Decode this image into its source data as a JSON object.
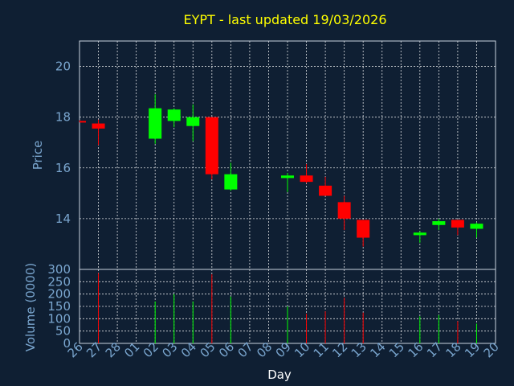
{
  "chart_data": [
    {
      "type": "candlestick",
      "title": "EYPT - last updated 19/03/2026",
      "ylabel": "Price",
      "ylim": [
        12.0,
        21.0
      ],
      "yticks": [
        14,
        16,
        18,
        20
      ],
      "grid": true,
      "x_dates": [
        "26",
        "27",
        "28",
        "01",
        "02",
        "03",
        "04",
        "05",
        "06",
        "07",
        "08",
        "09",
        "10",
        "11",
        "12",
        "13",
        "14",
        "15",
        "16",
        "17",
        "18",
        "19",
        "20"
      ],
      "candles": [
        {
          "date": "26",
          "open": 17.85,
          "high": 17.87,
          "low": 17.83,
          "close": 17.83
        },
        {
          "date": "27",
          "open": 17.75,
          "high": 17.9,
          "low": 16.9,
          "close": 17.55
        },
        {
          "date": "02",
          "open": 17.15,
          "high": 18.9,
          "low": 16.95,
          "close": 18.35
        },
        {
          "date": "03",
          "open": 17.85,
          "high": 18.35,
          "low": 17.6,
          "close": 18.3
        },
        {
          "date": "04",
          "open": 17.65,
          "high": 18.5,
          "low": 17.05,
          "close": 18.0
        },
        {
          "date": "05",
          "open": 18.0,
          "high": 18.0,
          "low": 15.55,
          "close": 15.75
        },
        {
          "date": "06",
          "open": 15.15,
          "high": 16.2,
          "low": 15.1,
          "close": 15.75
        },
        {
          "date": "09",
          "open": 15.6,
          "high": 15.8,
          "low": 15.05,
          "close": 15.7
        },
        {
          "date": "10",
          "open": 15.7,
          "high": 16.15,
          "low": 15.4,
          "close": 15.45
        },
        {
          "date": "11",
          "open": 15.3,
          "high": 15.65,
          "low": 14.9,
          "close": 14.9
        },
        {
          "date": "12",
          "open": 14.65,
          "high": 14.9,
          "low": 13.55,
          "close": 14.0
        },
        {
          "date": "13",
          "open": 13.95,
          "high": 13.95,
          "low": 12.9,
          "close": 13.25
        },
        {
          "date": "16",
          "open": 13.35,
          "high": 13.5,
          "low": 13.05,
          "close": 13.45
        },
        {
          "date": "17",
          "open": 13.75,
          "high": 14.0,
          "low": 13.55,
          "close": 13.9
        },
        {
          "date": "18",
          "open": 13.95,
          "high": 13.95,
          "low": 13.35,
          "close": 13.65
        },
        {
          "date": "19",
          "open": 13.6,
          "high": 13.85,
          "low": 13.25,
          "close": 13.8
        }
      ],
      "colors": {
        "up": "#00ff00",
        "down": "#ff0000",
        "text": "#7aa6cf",
        "title": "#ffff00",
        "background": "#0f1f33"
      }
    },
    {
      "type": "bar",
      "ylabel": "Volume (0000)",
      "xlabel": "Day",
      "ylim": [
        0,
        300
      ],
      "yticks": [
        0,
        50,
        100,
        150,
        200,
        250,
        300
      ],
      "x_dates": [
        "26",
        "27",
        "28",
        "01",
        "02",
        "03",
        "04",
        "05",
        "06",
        "07",
        "08",
        "09",
        "10",
        "11",
        "12",
        "13",
        "14",
        "15",
        "16",
        "17",
        "18",
        "19",
        "20"
      ],
      "bars": [
        {
          "date": "27",
          "value": 285,
          "direction": "down"
        },
        {
          "date": "02",
          "value": 170,
          "direction": "up"
        },
        {
          "date": "03",
          "value": 200,
          "direction": "up"
        },
        {
          "date": "04",
          "value": 170,
          "direction": "up"
        },
        {
          "date": "05",
          "value": 280,
          "direction": "down"
        },
        {
          "date": "06",
          "value": 190,
          "direction": "up"
        },
        {
          "date": "09",
          "value": 150,
          "direction": "up"
        },
        {
          "date": "10",
          "value": 120,
          "direction": "down"
        },
        {
          "date": "11",
          "value": 130,
          "direction": "down"
        },
        {
          "date": "12",
          "value": 185,
          "direction": "down"
        },
        {
          "date": "13",
          "value": 125,
          "direction": "down"
        },
        {
          "date": "16",
          "value": 110,
          "direction": "up"
        },
        {
          "date": "17",
          "value": 115,
          "direction": "up"
        },
        {
          "date": "18",
          "value": 90,
          "direction": "down"
        },
        {
          "date": "19",
          "value": 80,
          "direction": "up"
        }
      ]
    }
  ]
}
